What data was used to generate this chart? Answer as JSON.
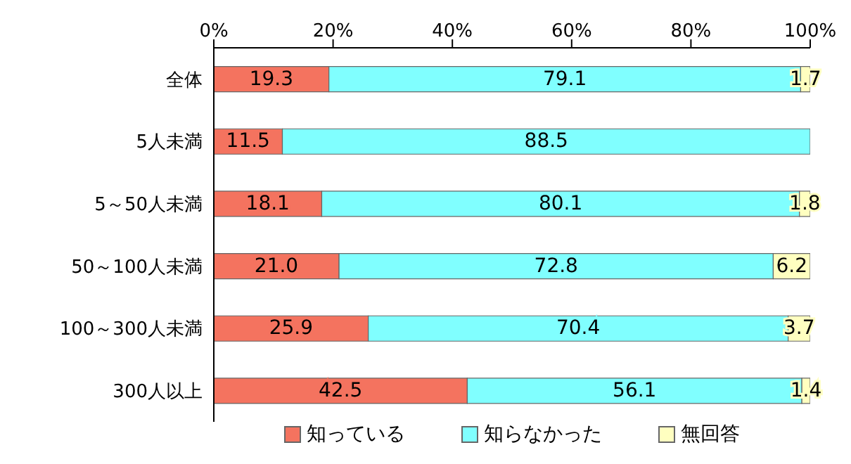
{
  "chart_data": {
    "type": "bar",
    "orientation": "horizontal",
    "stacked": true,
    "categories": [
      "全体",
      "5人未満",
      "5～50人未満",
      "50～100人未満",
      "100～300人未満",
      "300人以上"
    ],
    "series": [
      {
        "name": "知っている",
        "color": "#f4735f",
        "values": [
          19.3,
          11.5,
          18.1,
          21.0,
          25.9,
          42.5
        ],
        "value_labels": [
          "19.3",
          "11.5",
          "18.1",
          "21.0",
          "25.9",
          "42.5"
        ]
      },
      {
        "name": "知らなかった",
        "color": "#80ffff",
        "values": [
          79.1,
          88.5,
          80.1,
          72.8,
          70.4,
          56.1
        ],
        "value_labels": [
          "79.1",
          "88.5",
          "80.1",
          "72.8",
          "70.4",
          "56.1"
        ]
      },
      {
        "name": "無回答",
        "color": "#ffffc0",
        "values": [
          1.7,
          0,
          1.8,
          6.2,
          3.7,
          1.4
        ],
        "value_labels": [
          "1.7",
          null,
          "1.8",
          "6.2",
          "3.7",
          "1.4"
        ]
      }
    ],
    "xlim": [
      0,
      100
    ],
    "xticks": [
      {
        "value": 0,
        "label": "0%"
      },
      {
        "value": 20,
        "label": "20%"
      },
      {
        "value": 40,
        "label": "40%"
      },
      {
        "value": 60,
        "label": "60%"
      },
      {
        "value": 80,
        "label": "80%"
      },
      {
        "value": 100,
        "label": "100%"
      }
    ],
    "legend": "bottom"
  }
}
